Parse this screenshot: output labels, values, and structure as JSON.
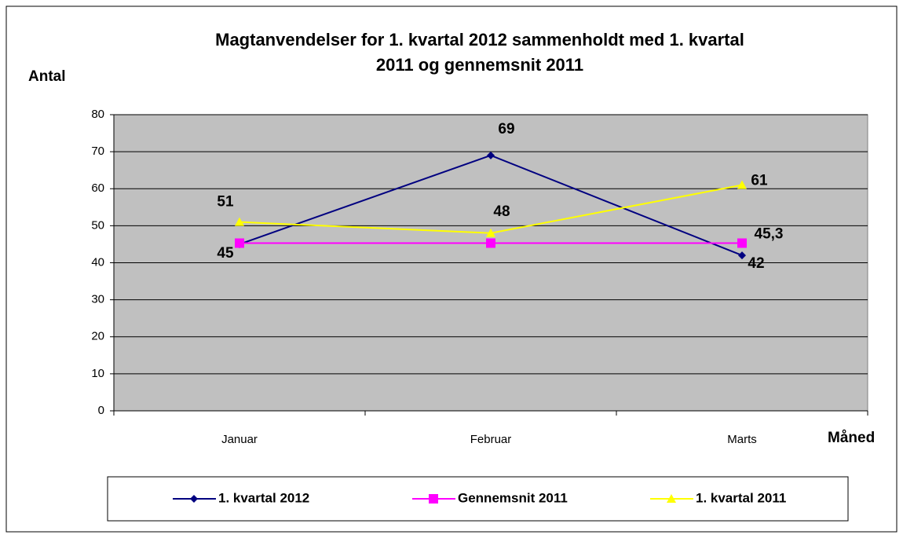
{
  "chart_data": {
    "type": "line",
    "title": [
      "Magtanvendelser for 1. kvartal 2012 sammenholdt med 1. kvartal",
      "2011 og gennemsnit 2011"
    ],
    "y_label": "Antal",
    "x_label": "Måned",
    "categories": [
      "Januar",
      "Februar",
      "Marts"
    ],
    "series": [
      {
        "name": "1. kvartal 2012",
        "color": "#000080",
        "marker": "diamond",
        "values": [
          45,
          69,
          42
        ]
      },
      {
        "name": "Gennemsnit 2011",
        "color": "#ff00ff",
        "marker": "square",
        "values": [
          45.3,
          45.3,
          45.3
        ],
        "value_labels": [
          null,
          null,
          "45,3"
        ]
      },
      {
        "name": "1. kvartal 2011",
        "color": "#ffff00",
        "marker": "triangle",
        "values": [
          51,
          48,
          61
        ]
      }
    ],
    "ylim": [
      0,
      80
    ],
    "yticks": [
      0,
      10,
      20,
      30,
      40,
      50,
      60,
      70,
      80
    ],
    "grid": true,
    "legend": "bottom"
  }
}
